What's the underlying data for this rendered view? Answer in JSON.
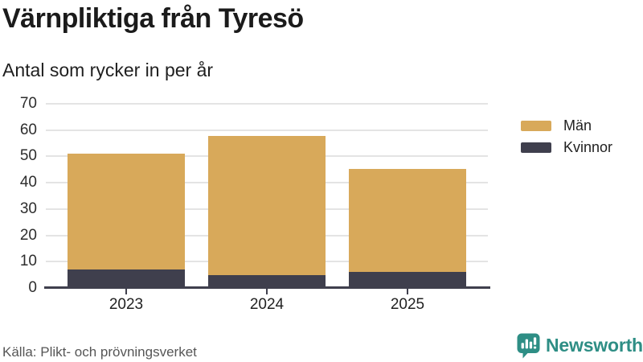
{
  "header": {
    "title": "Värnpliktiga från Tyresö",
    "subtitle": "Antal som rycker in per år"
  },
  "chart_data": {
    "type": "bar",
    "stacked": true,
    "title": "Värnpliktiga från Tyresö",
    "subtitle": "Antal som rycker in per år",
    "categories": [
      "2023",
      "2024",
      "2025"
    ],
    "series": [
      {
        "name": "Män",
        "color": "#d8a95a",
        "values": [
          44,
          53,
          39
        ]
      },
      {
        "name": "Kvinnor",
        "color": "#3f3f4d",
        "values": [
          7,
          5,
          6
        ]
      }
    ],
    "stacked_totals": [
      51,
      58,
      45
    ],
    "xlabel": "",
    "ylabel": "",
    "ylim": [
      0,
      70
    ],
    "y_ticks": [
      0,
      10,
      20,
      30,
      40,
      50,
      60,
      70
    ],
    "grid": "horizontal",
    "legend_position": "right"
  },
  "footer": {
    "source": "Källa: Plikt- och prövningsverket",
    "brand": "Newsworthy"
  },
  "colors": {
    "bar_men": "#d8a95a",
    "bar_women": "#3f3f4d",
    "gridline": "#e4e4e4",
    "axis": "#3f3f4d",
    "brand_teal": "#2e8e85"
  }
}
